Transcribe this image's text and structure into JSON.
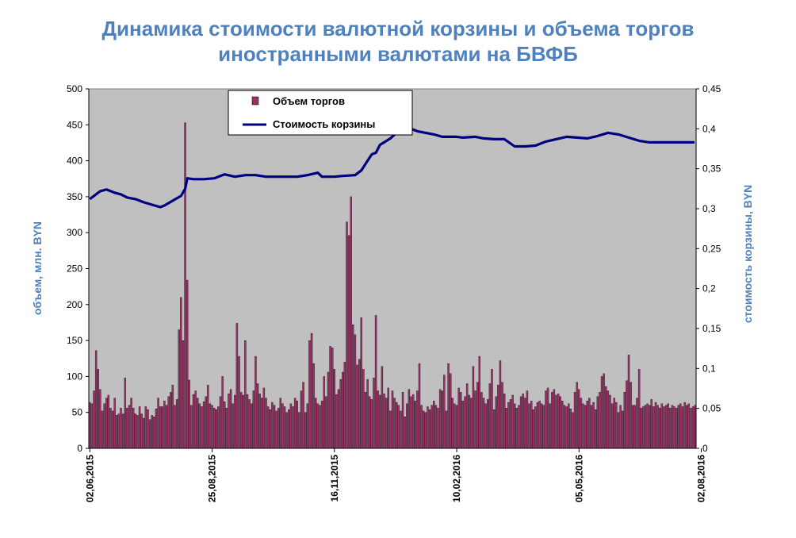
{
  "chart_data": {
    "type": "bar",
    "title_line1": "Динамика стоимости валютной корзины и объема торгов",
    "title_line2": "иностранными валютами на БВФБ",
    "ylabel_left": "объем, млн. BYN",
    "ylabel_right": "стоимость корзины, BYN",
    "y_left_ticks": [
      "0",
      "50",
      "100",
      "150",
      "200",
      "250",
      "300",
      "350",
      "400",
      "450",
      "500"
    ],
    "y_right_ticks": [
      "0",
      "0,05",
      "0,1",
      "0,15",
      "0,2",
      "0,25",
      "0,3",
      "0,35",
      "0,4",
      "0,45"
    ],
    "ylim_left": [
      0,
      500
    ],
    "ylim_right": [
      0,
      0.45
    ],
    "x_tick_labels": [
      "02,06,2015",
      "25,08,2015",
      "16,11,2015",
      "10,02,2016",
      "05,05,2016",
      "02,08,2016"
    ],
    "x_tick_indices": [
      0,
      59,
      118,
      177,
      236,
      295
    ],
    "legend": {
      "position": "top-left",
      "entries": [
        "Объем торгов",
        "Стоимость корзины"
      ]
    },
    "colors": {
      "bars": "#993366",
      "line": "#000080",
      "plot_bg": "#c0c0c0",
      "axis_title": "#4f81bd"
    },
    "series": [
      {
        "name": "Объем торгов",
        "type": "bar",
        "axis": "left",
        "values": [
          64,
          62,
          80,
          136,
          110,
          82,
          52,
          62,
          70,
          74,
          56,
          52,
          70,
          46,
          48,
          56,
          48,
          98,
          56,
          60,
          70,
          56,
          48,
          46,
          58,
          48,
          42,
          58,
          54,
          40,
          46,
          44,
          55,
          70,
          58,
          58,
          66,
          60,
          72,
          78,
          88,
          60,
          68,
          165,
          210,
          150,
          453,
          234,
          95,
          60,
          75,
          80,
          70,
          62,
          58,
          65,
          72,
          88,
          62,
          60,
          56,
          54,
          58,
          72,
          100,
          65,
          56,
          76,
          82,
          62,
          74,
          174,
          128,
          78,
          74,
          150,
          75,
          68,
          62,
          80,
          128,
          90,
          76,
          70,
          84,
          70,
          58,
          54,
          64,
          60,
          52,
          56,
          70,
          62,
          58,
          50,
          54,
          62,
          58,
          70,
          66,
          50,
          80,
          92,
          50,
          62,
          150,
          160,
          118,
          70,
          62,
          60,
          66,
          100,
          72,
          106,
          142,
          140,
          110,
          75,
          82,
          96,
          106,
          120,
          315,
          296,
          350,
          172,
          158,
          116,
          124,
          182,
          110,
          78,
          96,
          72,
          68,
          98,
          185,
          80,
          74,
          114,
          76,
          70,
          84,
          52,
          80,
          70,
          64,
          60,
          52,
          78,
          44,
          62,
          82,
          72,
          75,
          66,
          80,
          118,
          60,
          52,
          50,
          58,
          54,
          60,
          66,
          60,
          56,
          82,
          80,
          102,
          52,
          118,
          104,
          70,
          62,
          60,
          84,
          78,
          66,
          72,
          90,
          74,
          70,
          114,
          80,
          92,
          128,
          78,
          70,
          62,
          68,
          90,
          110,
          54,
          72,
          88,
          122,
          92,
          76,
          56,
          64,
          68,
          74,
          62,
          56,
          60,
          72,
          76,
          70,
          80,
          62,
          66,
          54,
          58,
          64,
          66,
          62,
          60,
          80,
          84,
          62,
          78,
          82,
          74,
          76,
          72,
          66,
          60,
          58,
          62,
          55,
          50,
          78,
          92,
          82,
          70,
          62,
          60,
          66,
          70,
          60,
          64,
          54,
          72,
          78,
          100,
          104,
          86,
          80,
          74,
          62,
          70,
          64,
          50,
          60,
          52,
          78,
          94,
          130,
          92,
          60,
          60,
          70,
          110,
          56,
          58,
          60,
          62,
          60,
          68,
          58,
          64,
          60,
          56,
          62,
          58,
          60,
          62,
          56,
          60,
          58,
          56,
          60,
          62,
          58,
          64,
          60,
          62,
          56,
          58,
          60
        ],
        "bar_color": "#993366"
      },
      {
        "name": "Стоимость корзины",
        "type": "line",
        "axis": "right",
        "points_index": [
          0,
          5,
          8,
          12,
          15,
          18,
          22,
          26,
          30,
          34,
          36,
          40,
          44,
          46,
          47,
          50,
          55,
          60,
          65,
          70,
          75,
          80,
          85,
          90,
          95,
          100,
          105,
          110,
          112,
          115,
          118,
          122,
          128,
          131,
          133,
          136,
          138,
          140,
          142,
          145,
          148,
          152,
          155,
          158,
          162,
          166,
          170,
          174,
          177,
          180,
          186,
          190,
          195,
          200,
          205,
          210,
          215,
          220,
          225,
          230,
          235,
          240,
          245,
          250,
          255,
          260,
          265,
          270,
          275,
          280,
          285,
          290,
          295,
          300
        ],
        "points_value": [
          0.312,
          0.322,
          0.324,
          0.32,
          0.318,
          0.314,
          0.312,
          0.308,
          0.305,
          0.302,
          0.304,
          0.31,
          0.316,
          0.325,
          0.338,
          0.337,
          0.337,
          0.338,
          0.343,
          0.34,
          0.342,
          0.342,
          0.34,
          0.34,
          0.34,
          0.34,
          0.342,
          0.345,
          0.34,
          0.34,
          0.34,
          0.341,
          0.342,
          0.348,
          0.356,
          0.368,
          0.37,
          0.38,
          0.383,
          0.388,
          0.395,
          0.4,
          0.4,
          0.397,
          0.395,
          0.393,
          0.39,
          0.39,
          0.39,
          0.389,
          0.39,
          0.388,
          0.387,
          0.387,
          0.378,
          0.378,
          0.379,
          0.384,
          0.387,
          0.39,
          0.389,
          0.388,
          0.391,
          0.395,
          0.393,
          0.389,
          0.385,
          0.383,
          0.383,
          0.383,
          0.383,
          0.383,
          0.383,
          0.383
        ],
        "line_color": "#000080"
      }
    ]
  }
}
